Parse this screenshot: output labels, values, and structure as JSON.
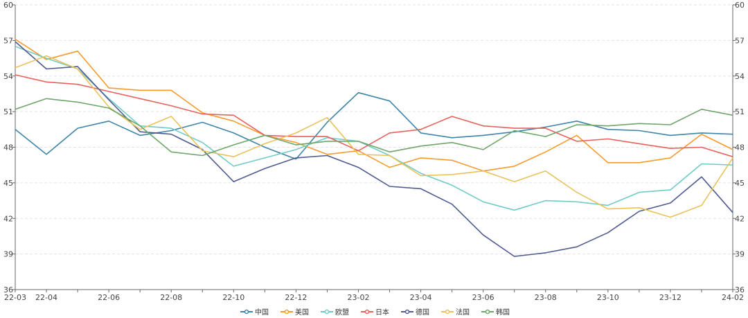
{
  "chart_data": {
    "type": "line",
    "categories": [
      "22-03",
      "22-04",
      "22-05",
      "22-06",
      "22-07",
      "22-08",
      "22-09",
      "22-10",
      "22-11",
      "22-12",
      "23-01",
      "23-02",
      "23-03",
      "23-04",
      "23-05",
      "23-06",
      "23-07",
      "23-08",
      "23-09",
      "23-10",
      "23-11",
      "23-12",
      "24-01",
      "24-02"
    ],
    "x_tick_labels": [
      "22-03",
      "22-04",
      "22-06",
      "22-08",
      "22-10",
      "22-12",
      "23-02",
      "23-04",
      "23-06",
      "23-08",
      "23-10",
      "23-12",
      "24-02"
    ],
    "y_ticks": [
      36,
      39,
      42,
      45,
      48,
      51,
      54,
      57,
      60
    ],
    "ylim": [
      36,
      60
    ],
    "grid": "horizontal dashed",
    "legend_position": "bottom",
    "series": [
      {
        "name": "中国",
        "color": "#3d84a8",
        "values": [
          49.5,
          47.4,
          49.6,
          50.2,
          49.0,
          49.4,
          50.1,
          49.2,
          48.0,
          47.0,
          50.1,
          52.6,
          51.9,
          49.2,
          48.8,
          49.0,
          49.3,
          49.7,
          50.2,
          49.5,
          49.4,
          49.0,
          49.2,
          49.1
        ]
      },
      {
        "name": "美国",
        "color": "#f59b2b",
        "values": [
          57.1,
          55.4,
          56.1,
          53.0,
          52.8,
          52.8,
          50.9,
          50.2,
          49.0,
          48.4,
          47.4,
          47.7,
          46.3,
          47.1,
          46.9,
          46.0,
          46.4,
          47.6,
          49.0,
          46.7,
          46.7,
          47.1,
          49.1,
          47.8
        ]
      },
      {
        "name": "欧盟",
        "color": "#6fcbc7",
        "values": [
          56.5,
          55.5,
          54.6,
          52.1,
          49.8,
          49.6,
          48.4,
          46.4,
          47.1,
          47.8,
          48.8,
          48.5,
          47.3,
          45.8,
          44.8,
          43.4,
          42.7,
          43.5,
          43.4,
          43.1,
          44.2,
          44.4,
          46.6,
          46.5
        ]
      },
      {
        "name": "日本",
        "color": "#e8615d",
        "values": [
          54.1,
          53.5,
          53.3,
          52.7,
          52.1,
          51.5,
          50.8,
          50.7,
          49.0,
          48.9,
          48.9,
          47.7,
          49.2,
          49.5,
          50.6,
          49.8,
          49.6,
          49.6,
          48.5,
          48.7,
          48.3,
          47.9,
          48.0,
          47.2
        ]
      },
      {
        "name": "德国",
        "color": "#4e5a8f",
        "values": [
          56.9,
          54.6,
          54.8,
          52.0,
          49.3,
          49.1,
          47.8,
          45.1,
          46.2,
          47.1,
          47.3,
          46.3,
          44.7,
          44.5,
          43.2,
          40.6,
          38.8,
          39.1,
          39.6,
          40.8,
          42.6,
          43.3,
          45.5,
          42.5
        ]
      },
      {
        "name": "法国",
        "color": "#e9c25a",
        "values": [
          54.7,
          55.7,
          54.6,
          51.4,
          49.5,
          50.6,
          47.7,
          47.2,
          48.3,
          49.2,
          50.5,
          47.4,
          47.3,
          45.6,
          45.7,
          46.0,
          45.1,
          46.0,
          44.2,
          42.8,
          42.9,
          42.1,
          43.1,
          47.1
        ]
      },
      {
        "name": "韩国",
        "color": "#6da56a",
        "values": [
          51.2,
          52.1,
          51.8,
          51.3,
          49.8,
          47.6,
          47.3,
          48.2,
          49.0,
          48.2,
          48.5,
          48.5,
          47.6,
          48.1,
          48.4,
          47.8,
          49.4,
          48.9,
          49.9,
          49.8,
          50.0,
          49.9,
          51.2,
          50.7
        ]
      }
    ]
  }
}
